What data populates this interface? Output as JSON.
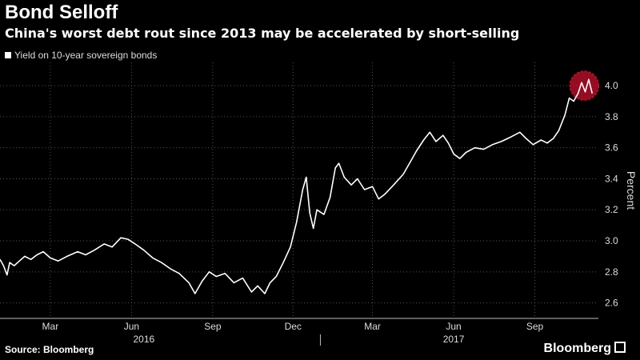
{
  "header": {
    "title": "Bond Selloff",
    "subtitle": "China's worst debt rout since 2013 may be accelerated by short-selling"
  },
  "legend": {
    "label": "Yield on 10-year sovereign bonds"
  },
  "footer": {
    "source": "Source: Bloomberg",
    "brand": "Bloomberg"
  },
  "colors": {
    "background": "#000000",
    "line": "#ffffff",
    "grid": "#555555",
    "highlight": "#c8102e"
  },
  "chart_data": {
    "type": "line",
    "title": "Bond Selloff",
    "subtitle": "China's worst debt rout since 2013 may be accelerated by short-selling",
    "ylabel": "Percent",
    "ylim": [
      2.5,
      4.15
    ],
    "yticks": [
      2.6,
      2.8,
      3.0,
      3.2,
      3.4,
      3.6,
      3.8,
      4.0
    ],
    "x_ticks": [
      {
        "label": "Mar",
        "date": "2016-03-01"
      },
      {
        "label": "Jun",
        "date": "2016-06-01"
      },
      {
        "label": "Sep",
        "date": "2016-09-01"
      },
      {
        "label": "Dec",
        "date": "2016-12-01"
      },
      {
        "label": "Mar",
        "date": "2017-03-01"
      },
      {
        "label": "Jun",
        "date": "2017-06-01"
      },
      {
        "label": "Sep",
        "date": "2017-09-01"
      }
    ],
    "year_labels": [
      {
        "label": "2016",
        "date": "2016-06-15"
      },
      {
        "label": "2017",
        "date": "2017-06-01"
      }
    ],
    "grid": true,
    "legend_position": "top-left",
    "highlight": {
      "date": "2017-10-27",
      "value": 4.0
    },
    "series": [
      {
        "name": "Yield on 10-year sovereign bonds",
        "points": [
          [
            "2016-01-04",
            2.88
          ],
          [
            "2016-01-08",
            2.84
          ],
          [
            "2016-01-12",
            2.78
          ],
          [
            "2016-01-15",
            2.86
          ],
          [
            "2016-01-20",
            2.84
          ],
          [
            "2016-01-26",
            2.87
          ],
          [
            "2016-02-01",
            2.9
          ],
          [
            "2016-02-08",
            2.88
          ],
          [
            "2016-02-15",
            2.91
          ],
          [
            "2016-02-22",
            2.93
          ],
          [
            "2016-03-01",
            2.89
          ],
          [
            "2016-03-10",
            2.87
          ],
          [
            "2016-03-20",
            2.9
          ],
          [
            "2016-04-01",
            2.93
          ],
          [
            "2016-04-10",
            2.91
          ],
          [
            "2016-04-20",
            2.94
          ],
          [
            "2016-05-01",
            2.98
          ],
          [
            "2016-05-10",
            2.96
          ],
          [
            "2016-05-20",
            3.02
          ],
          [
            "2016-05-28",
            3.01
          ],
          [
            "2016-06-05",
            2.98
          ],
          [
            "2016-06-15",
            2.94
          ],
          [
            "2016-06-25",
            2.89
          ],
          [
            "2016-07-05",
            2.86
          ],
          [
            "2016-07-15",
            2.82
          ],
          [
            "2016-07-25",
            2.79
          ],
          [
            "2016-08-05",
            2.73
          ],
          [
            "2016-08-12",
            2.66
          ],
          [
            "2016-08-20",
            2.74
          ],
          [
            "2016-08-28",
            2.8
          ],
          [
            "2016-09-05",
            2.77
          ],
          [
            "2016-09-15",
            2.79
          ],
          [
            "2016-09-25",
            2.73
          ],
          [
            "2016-10-05",
            2.76
          ],
          [
            "2016-10-15",
            2.67
          ],
          [
            "2016-10-22",
            2.71
          ],
          [
            "2016-10-30",
            2.66
          ],
          [
            "2016-11-05",
            2.73
          ],
          [
            "2016-11-12",
            2.77
          ],
          [
            "2016-11-20",
            2.86
          ],
          [
            "2016-11-28",
            2.96
          ],
          [
            "2016-12-05",
            3.12
          ],
          [
            "2016-12-12",
            3.33
          ],
          [
            "2016-12-16",
            3.41
          ],
          [
            "2016-12-20",
            3.18
          ],
          [
            "2016-12-24",
            3.08
          ],
          [
            "2016-12-28",
            3.2
          ],
          [
            "2017-01-05",
            3.17
          ],
          [
            "2017-01-12",
            3.28
          ],
          [
            "2017-01-18",
            3.47
          ],
          [
            "2017-01-22",
            3.5
          ],
          [
            "2017-01-28",
            3.41
          ],
          [
            "2017-02-05",
            3.36
          ],
          [
            "2017-02-12",
            3.4
          ],
          [
            "2017-02-20",
            3.33
          ],
          [
            "2017-03-01",
            3.35
          ],
          [
            "2017-03-08",
            3.27
          ],
          [
            "2017-03-15",
            3.3
          ],
          [
            "2017-03-25",
            3.36
          ],
          [
            "2017-04-05",
            3.43
          ],
          [
            "2017-04-12",
            3.5
          ],
          [
            "2017-04-20",
            3.58
          ],
          [
            "2017-04-28",
            3.65
          ],
          [
            "2017-05-05",
            3.7
          ],
          [
            "2017-05-12",
            3.64
          ],
          [
            "2017-05-20",
            3.68
          ],
          [
            "2017-05-26",
            3.63
          ],
          [
            "2017-06-01",
            3.56
          ],
          [
            "2017-06-08",
            3.53
          ],
          [
            "2017-06-15",
            3.57
          ],
          [
            "2017-06-25",
            3.6
          ],
          [
            "2017-07-05",
            3.59
          ],
          [
            "2017-07-15",
            3.62
          ],
          [
            "2017-07-25",
            3.64
          ],
          [
            "2017-08-05",
            3.67
          ],
          [
            "2017-08-15",
            3.7
          ],
          [
            "2017-08-22",
            3.66
          ],
          [
            "2017-08-30",
            3.62
          ],
          [
            "2017-09-08",
            3.65
          ],
          [
            "2017-09-15",
            3.63
          ],
          [
            "2017-09-22",
            3.66
          ],
          [
            "2017-09-28",
            3.71
          ],
          [
            "2017-10-05",
            3.81
          ],
          [
            "2017-10-10",
            3.92
          ],
          [
            "2017-10-15",
            3.9
          ],
          [
            "2017-10-20",
            3.95
          ],
          [
            "2017-10-24",
            4.02
          ],
          [
            "2017-10-28",
            3.96
          ],
          [
            "2017-11-01",
            4.04
          ],
          [
            "2017-11-05",
            3.95
          ]
        ]
      }
    ]
  }
}
